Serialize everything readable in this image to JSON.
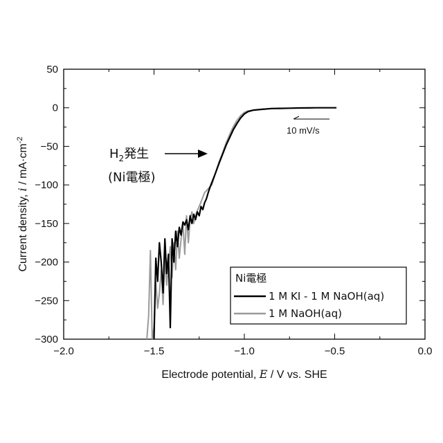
{
  "chart_data": {
    "type": "line",
    "xlabel": {
      "prefix": "Electrode potential, ",
      "var": "E",
      "suffix": " / V vs. SHE"
    },
    "ylabel": {
      "prefix": "Current density, ",
      "var": "i",
      "suffix": " / mA·cm",
      "sup": "-2"
    },
    "xlim": [
      -2.0,
      0.0
    ],
    "ylim": [
      -300,
      50
    ],
    "xticks": [
      -2.0,
      -1.5,
      -1.0,
      -0.5,
      0.0
    ],
    "xtick_labels": [
      "−2.0",
      "−1.5",
      "−1.0",
      "−0.5",
      "0.0"
    ],
    "yticks": [
      50,
      0,
      -50,
      -100,
      -150,
      -200,
      -250,
      -300
    ],
    "ytick_labels": [
      "50",
      "0",
      "−50",
      "−100",
      "−150",
      "−200",
      "−250",
      "−300"
    ],
    "grid": false,
    "legend": {
      "placement": "lower-right",
      "title": "Ni電極",
      "entries": [
        "1 M KI - 1 M NaOH(aq)",
        "1 M NaOH(aq)"
      ]
    },
    "series": [
      {
        "name": "1 M KI - 1 M NaOH(aq)",
        "color": "#000000",
        "x": [
          -0.49,
          -0.55,
          -0.6,
          -0.65,
          -0.7,
          -0.75,
          -0.8,
          -0.85,
          -0.9,
          -0.95,
          -0.98,
          -1.0,
          -1.02,
          -1.04,
          -1.06,
          -1.08,
          -1.1,
          -1.12,
          -1.14,
          -1.16,
          -1.18,
          -1.19,
          -1.2,
          -1.21,
          -1.22,
          -1.23,
          -1.24,
          -1.25,
          -1.26,
          -1.27,
          -1.28,
          -1.29,
          -1.3,
          -1.31,
          -1.32,
          -1.33,
          -1.34,
          -1.35,
          -1.36,
          -1.37,
          -1.38,
          -1.39,
          -1.4,
          -1.41,
          -1.42,
          -1.43,
          -1.44,
          -1.45,
          -1.46,
          -1.47,
          -1.48,
          -1.49,
          -1.5
        ],
        "y": [
          0,
          0,
          0,
          -0.2,
          -0.3,
          -0.5,
          -0.8,
          -1,
          -2,
          -3,
          -5,
          -8,
          -13,
          -20,
          -28,
          -38,
          -48,
          -60,
          -72,
          -85,
          -97,
          -103,
          -110,
          -118,
          -123,
          -132,
          -128,
          -140,
          -135,
          -145,
          -138,
          -150,
          -140,
          -158,
          -145,
          -152,
          -148,
          -165,
          -155,
          -180,
          -160,
          -200,
          -170,
          -285,
          -190,
          -215,
          -170,
          -240,
          -200,
          -175,
          -225,
          -195,
          -300
        ]
      },
      {
        "name": "1 M NaOH(aq)",
        "color": "#9a9a9a",
        "x": [
          -0.8,
          -0.85,
          -0.9,
          -0.95,
          -0.98,
          -1.0,
          -1.02,
          -1.04,
          -1.06,
          -1.08,
          -1.1,
          -1.12,
          -1.14,
          -1.16,
          -1.18,
          -1.2,
          -1.22,
          -1.24,
          -1.25,
          -1.26,
          -1.27,
          -1.28,
          -1.29,
          -1.3,
          -1.31,
          -1.32,
          -1.33,
          -1.34,
          -1.35,
          -1.36,
          -1.37,
          -1.38,
          -1.39,
          -1.4,
          -1.41,
          -1.42,
          -1.43,
          -1.44,
          -1.45,
          -1.46,
          -1.47,
          -1.48,
          -1.49,
          -1.5,
          -1.51,
          -1.52,
          -1.53,
          -1.54
        ],
        "y": [
          -0.5,
          -1,
          -2,
          -3,
          -4,
          -6,
          -10,
          -16,
          -24,
          -34,
          -45,
          -58,
          -70,
          -85,
          -100,
          -105,
          -110,
          -122,
          -128,
          -133,
          -140,
          -150,
          -135,
          -145,
          -175,
          -140,
          -190,
          -150,
          -170,
          -195,
          -160,
          -210,
          -175,
          -220,
          -180,
          -205,
          -230,
          -195,
          -255,
          -210,
          -240,
          -260,
          -225,
          -285,
          -300,
          -185,
          -270,
          -300
        ]
      }
    ],
    "annotations": {
      "h2_label_main": "H",
      "h2_label_sub": "2",
      "h2_label_rest": "発生",
      "electrode_label": "(Ni電極)",
      "scan_rate": "10 mV/s"
    }
  }
}
